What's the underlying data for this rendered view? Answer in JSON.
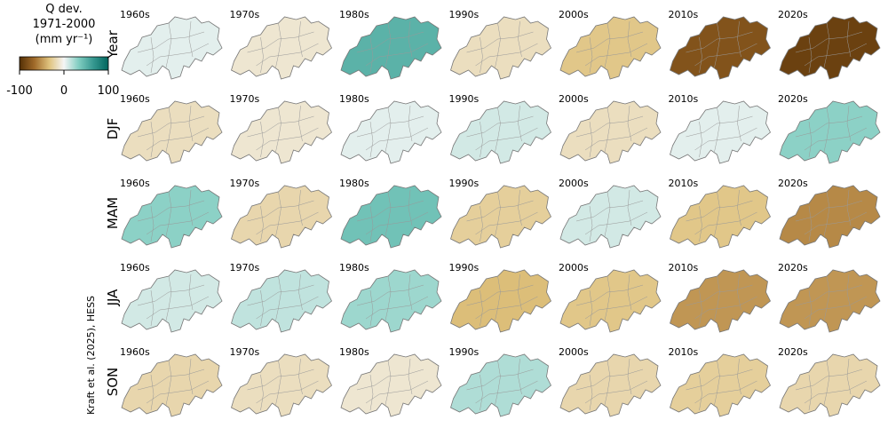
{
  "colorbar": {
    "title": [
      "Q dev.",
      "1971-2000",
      "(mm yr⁻¹)"
    ],
    "lim": [
      -100,
      100
    ],
    "ticks": [
      -100,
      0,
      100
    ],
    "colors": [
      "#543005",
      "#a06a2a",
      "#dfc27d",
      "#f5f5f5",
      "#80cdc1",
      "#35978f",
      "#01665e"
    ]
  },
  "columns": [
    "1960s",
    "1970s",
    "1980s",
    "1990s",
    "2000s",
    "2010s",
    "2020s"
  ],
  "rows": [
    {
      "label": "Year",
      "values": [
        5,
        -10,
        50,
        -15,
        -30,
        -80,
        -90
      ]
    },
    {
      "label": "DJF",
      "values": [
        -15,
        -10,
        5,
        10,
        -15,
        5,
        30
      ]
    },
    {
      "label": "MAM",
      "values": [
        30,
        -20,
        40,
        -25,
        10,
        -30,
        -55
      ]
    },
    {
      "label": "JJA",
      "values": [
        10,
        15,
        25,
        -35,
        -30,
        -50,
        -50
      ]
    },
    {
      "label": "SON",
      "values": [
        -20,
        -15,
        -10,
        20,
        -20,
        -25,
        -20
      ]
    }
  ],
  "credit": "Kraft et al. (2025), HESS"
}
